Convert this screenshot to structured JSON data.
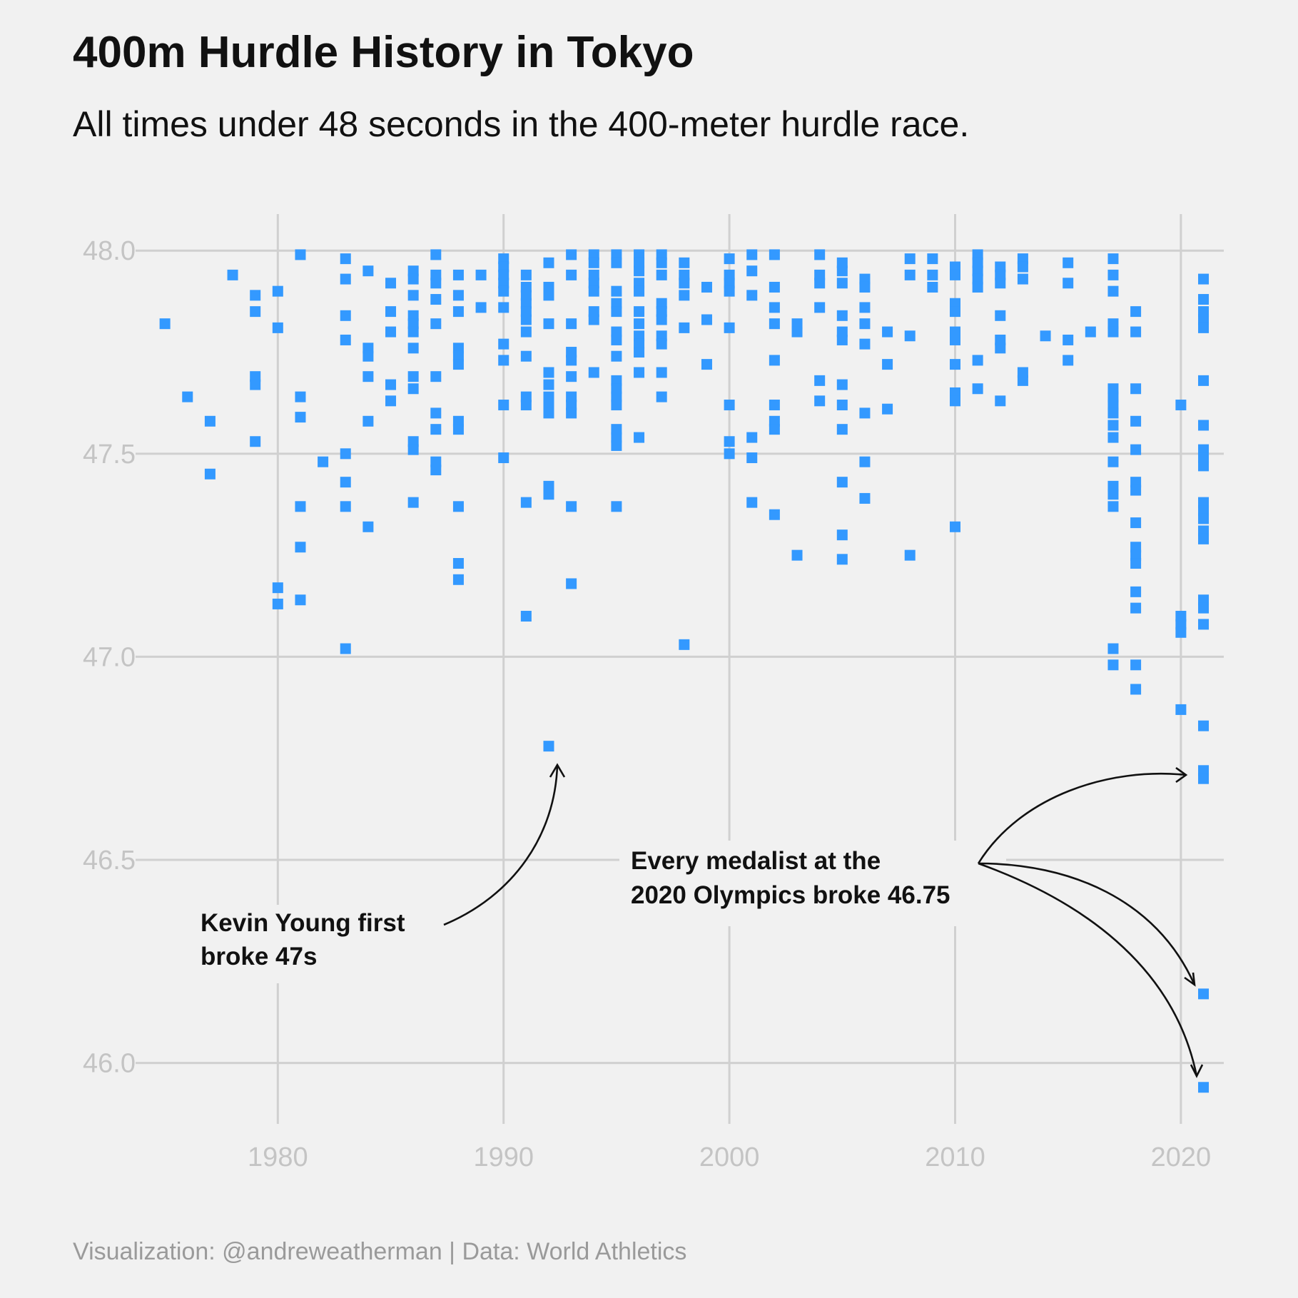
{
  "title": "400m Hurdle History in Tokyo",
  "subtitle": "All times under 48 seconds in the 400-meter hurdle race.",
  "caption": "Visualization: @andreweatherman | Data: World Athletics",
  "chart_data": {
    "type": "scatter",
    "x_ticks": [
      1980,
      1990,
      2000,
      2010,
      2020
    ],
    "y_ticks": [
      "46.0",
      "46.5",
      "47.0",
      "47.5",
      "48.0"
    ],
    "xlim": [
      1973.7,
      2021.9
    ],
    "ylim": [
      45.85,
      48.09
    ],
    "marker_color": "#3399ff",
    "grid": true,
    "points": [
      [
        1975,
        47.82
      ],
      [
        1976,
        47.64
      ],
      [
        1977,
        47.58
      ],
      [
        1977,
        47.45
      ],
      [
        1978,
        47.94
      ],
      [
        1979,
        47.89
      ],
      [
        1979,
        47.85
      ],
      [
        1979,
        47.69
      ],
      [
        1979,
        47.67
      ],
      [
        1979,
        47.53
      ],
      [
        1980,
        47.9
      ],
      [
        1980,
        47.81
      ],
      [
        1980,
        47.17
      ],
      [
        1980,
        47.13
      ],
      [
        1981,
        47.99
      ],
      [
        1981,
        47.64
      ],
      [
        1981,
        47.59
      ],
      [
        1981,
        47.37
      ],
      [
        1981,
        47.27
      ],
      [
        1981,
        47.14
      ],
      [
        1982,
        47.48
      ],
      [
        1983,
        47.98
      ],
      [
        1983,
        47.93
      ],
      [
        1983,
        47.84
      ],
      [
        1983,
        47.78
      ],
      [
        1983,
        47.5
      ],
      [
        1983,
        47.43
      ],
      [
        1983,
        47.37
      ],
      [
        1983,
        47.02
      ],
      [
        1984,
        47.95
      ],
      [
        1984,
        47.76
      ],
      [
        1984,
        47.74
      ],
      [
        1984,
        47.69
      ],
      [
        1984,
        47.58
      ],
      [
        1984,
        47.32
      ],
      [
        1985,
        47.92
      ],
      [
        1985,
        47.85
      ],
      [
        1985,
        47.8
      ],
      [
        1985,
        47.67
      ],
      [
        1985,
        47.63
      ],
      [
        1986,
        47.95
      ],
      [
        1986,
        47.93
      ],
      [
        1986,
        47.89
      ],
      [
        1986,
        47.84
      ],
      [
        1986,
        47.82
      ],
      [
        1986,
        47.8
      ],
      [
        1986,
        47.76
      ],
      [
        1986,
        47.69
      ],
      [
        1986,
        47.66
      ],
      [
        1986,
        47.53
      ],
      [
        1986,
        47.51
      ],
      [
        1986,
        47.38
      ],
      [
        1987,
        47.99
      ],
      [
        1987,
        47.94
      ],
      [
        1987,
        47.92
      ],
      [
        1987,
        47.88
      ],
      [
        1987,
        47.82
      ],
      [
        1987,
        47.69
      ],
      [
        1987,
        47.6
      ],
      [
        1987,
        47.56
      ],
      [
        1987,
        47.48
      ],
      [
        1987,
        47.46
      ],
      [
        1988,
        47.94
      ],
      [
        1988,
        47.89
      ],
      [
        1988,
        47.85
      ],
      [
        1988,
        47.76
      ],
      [
        1988,
        47.74
      ],
      [
        1988,
        47.72
      ],
      [
        1988,
        47.58
      ],
      [
        1988,
        47.56
      ],
      [
        1988,
        47.37
      ],
      [
        1988,
        47.23
      ],
      [
        1988,
        47.19
      ],
      [
        1989,
        47.94
      ],
      [
        1989,
        47.86
      ],
      [
        1990,
        47.98
      ],
      [
        1990,
        47.96
      ],
      [
        1990,
        47.94
      ],
      [
        1990,
        47.92
      ],
      [
        1990,
        47.9
      ],
      [
        1990,
        47.86
      ],
      [
        1990,
        47.77
      ],
      [
        1990,
        47.73
      ],
      [
        1990,
        47.62
      ],
      [
        1990,
        47.49
      ],
      [
        1991,
        47.94
      ],
      [
        1991,
        47.91
      ],
      [
        1991,
        47.89
      ],
      [
        1991,
        47.87
      ],
      [
        1991,
        47.85
      ],
      [
        1991,
        47.83
      ],
      [
        1991,
        47.8
      ],
      [
        1991,
        47.74
      ],
      [
        1991,
        47.64
      ],
      [
        1991,
        47.62
      ],
      [
        1991,
        47.38
      ],
      [
        1991,
        47.1
      ],
      [
        1992,
        47.97
      ],
      [
        1992,
        47.91
      ],
      [
        1992,
        47.89
      ],
      [
        1992,
        47.82
      ],
      [
        1992,
        47.7
      ],
      [
        1992,
        47.67
      ],
      [
        1992,
        47.64
      ],
      [
        1992,
        47.62
      ],
      [
        1992,
        47.6
      ],
      [
        1992,
        47.42
      ],
      [
        1992,
        47.4
      ],
      [
        1992,
        46.78
      ],
      [
        1993,
        47.99
      ],
      [
        1993,
        47.94
      ],
      [
        1993,
        47.82
      ],
      [
        1993,
        47.75
      ],
      [
        1993,
        47.73
      ],
      [
        1993,
        47.69
      ],
      [
        1993,
        47.64
      ],
      [
        1993,
        47.62
      ],
      [
        1993,
        47.6
      ],
      [
        1993,
        47.37
      ],
      [
        1993,
        47.18
      ],
      [
        1994,
        47.99
      ],
      [
        1994,
        47.97
      ],
      [
        1994,
        47.94
      ],
      [
        1994,
        47.92
      ],
      [
        1994,
        47.9
      ],
      [
        1994,
        47.85
      ],
      [
        1994,
        47.83
      ],
      [
        1994,
        47.7
      ],
      [
        1995,
        47.99
      ],
      [
        1995,
        47.97
      ],
      [
        1995,
        47.9
      ],
      [
        1995,
        47.87
      ],
      [
        1995,
        47.85
      ],
      [
        1995,
        47.8
      ],
      [
        1995,
        47.78
      ],
      [
        1995,
        47.74
      ],
      [
        1995,
        47.68
      ],
      [
        1995,
        47.66
      ],
      [
        1995,
        47.64
      ],
      [
        1995,
        47.62
      ],
      [
        1995,
        47.56
      ],
      [
        1995,
        47.54
      ],
      [
        1995,
        47.52
      ],
      [
        1995,
        47.37
      ],
      [
        1996,
        47.99
      ],
      [
        1996,
        47.97
      ],
      [
        1996,
        47.95
      ],
      [
        1996,
        47.92
      ],
      [
        1996,
        47.9
      ],
      [
        1996,
        47.85
      ],
      [
        1996,
        47.82
      ],
      [
        1996,
        47.79
      ],
      [
        1996,
        47.77
      ],
      [
        1996,
        47.75
      ],
      [
        1996,
        47.7
      ],
      [
        1996,
        47.54
      ],
      [
        1997,
        47.99
      ],
      [
        1997,
        47.97
      ],
      [
        1997,
        47.94
      ],
      [
        1997,
        47.87
      ],
      [
        1997,
        47.85
      ],
      [
        1997,
        47.83
      ],
      [
        1997,
        47.79
      ],
      [
        1997,
        47.77
      ],
      [
        1997,
        47.7
      ],
      [
        1997,
        47.64
      ],
      [
        1998,
        47.97
      ],
      [
        1998,
        47.94
      ],
      [
        1998,
        47.92
      ],
      [
        1998,
        47.89
      ],
      [
        1998,
        47.81
      ],
      [
        1998,
        47.03
      ],
      [
        1999,
        47.91
      ],
      [
        1999,
        47.83
      ],
      [
        1999,
        47.72
      ],
      [
        2000,
        47.98
      ],
      [
        2000,
        47.94
      ],
      [
        2000,
        47.92
      ],
      [
        2000,
        47.9
      ],
      [
        2000,
        47.81
      ],
      [
        2000,
        47.62
      ],
      [
        2000,
        47.53
      ],
      [
        2000,
        47.5
      ],
      [
        2001,
        47.99
      ],
      [
        2001,
        47.95
      ],
      [
        2001,
        47.89
      ],
      [
        2001,
        47.54
      ],
      [
        2001,
        47.49
      ],
      [
        2001,
        47.38
      ],
      [
        2002,
        47.99
      ],
      [
        2002,
        47.91
      ],
      [
        2002,
        47.86
      ],
      [
        2002,
        47.82
      ],
      [
        2002,
        47.73
      ],
      [
        2002,
        47.62
      ],
      [
        2002,
        47.58
      ],
      [
        2002,
        47.56
      ],
      [
        2002,
        47.35
      ],
      [
        2003,
        47.82
      ],
      [
        2003,
        47.8
      ],
      [
        2003,
        47.25
      ],
      [
        2004,
        47.99
      ],
      [
        2004,
        47.94
      ],
      [
        2004,
        47.92
      ],
      [
        2004,
        47.86
      ],
      [
        2004,
        47.68
      ],
      [
        2004,
        47.63
      ],
      [
        2005,
        47.97
      ],
      [
        2005,
        47.95
      ],
      [
        2005,
        47.92
      ],
      [
        2005,
        47.84
      ],
      [
        2005,
        47.8
      ],
      [
        2005,
        47.78
      ],
      [
        2005,
        47.67
      ],
      [
        2005,
        47.62
      ],
      [
        2005,
        47.56
      ],
      [
        2005,
        47.43
      ],
      [
        2005,
        47.3
      ],
      [
        2005,
        47.24
      ],
      [
        2006,
        47.93
      ],
      [
        2006,
        47.91
      ],
      [
        2006,
        47.86
      ],
      [
        2006,
        47.82
      ],
      [
        2006,
        47.77
      ],
      [
        2006,
        47.6
      ],
      [
        2006,
        47.48
      ],
      [
        2006,
        47.39
      ],
      [
        2007,
        47.8
      ],
      [
        2007,
        47.72
      ],
      [
        2007,
        47.61
      ],
      [
        2008,
        47.98
      ],
      [
        2008,
        47.94
      ],
      [
        2008,
        47.79
      ],
      [
        2008,
        47.25
      ],
      [
        2009,
        47.98
      ],
      [
        2009,
        47.94
      ],
      [
        2009,
        47.91
      ],
      [
        2010,
        47.96
      ],
      [
        2010,
        47.94
      ],
      [
        2010,
        47.87
      ],
      [
        2010,
        47.85
      ],
      [
        2010,
        47.8
      ],
      [
        2010,
        47.78
      ],
      [
        2010,
        47.72
      ],
      [
        2010,
        47.65
      ],
      [
        2010,
        47.63
      ],
      [
        2010,
        47.32
      ],
      [
        2011,
        47.99
      ],
      [
        2011,
        47.97
      ],
      [
        2011,
        47.95
      ],
      [
        2011,
        47.93
      ],
      [
        2011,
        47.91
      ],
      [
        2011,
        47.73
      ],
      [
        2011,
        47.66
      ],
      [
        2012,
        47.96
      ],
      [
        2012,
        47.94
      ],
      [
        2012,
        47.92
      ],
      [
        2012,
        47.84
      ],
      [
        2012,
        47.78
      ],
      [
        2012,
        47.76
      ],
      [
        2012,
        47.63
      ],
      [
        2013,
        47.98
      ],
      [
        2013,
        47.96
      ],
      [
        2013,
        47.93
      ],
      [
        2013,
        47.7
      ],
      [
        2013,
        47.68
      ],
      [
        2014,
        47.79
      ],
      [
        2015,
        47.97
      ],
      [
        2015,
        47.92
      ],
      [
        2015,
        47.78
      ],
      [
        2015,
        47.73
      ],
      [
        2016,
        47.8
      ],
      [
        2017,
        47.98
      ],
      [
        2017,
        47.94
      ],
      [
        2017,
        47.9
      ],
      [
        2017,
        47.82
      ],
      [
        2017,
        47.8
      ],
      [
        2017,
        47.66
      ],
      [
        2017,
        47.64
      ],
      [
        2017,
        47.62
      ],
      [
        2017,
        47.6
      ],
      [
        2017,
        47.57
      ],
      [
        2017,
        47.54
      ],
      [
        2017,
        47.48
      ],
      [
        2017,
        47.42
      ],
      [
        2017,
        47.4
      ],
      [
        2017,
        47.37
      ],
      [
        2017,
        47.02
      ],
      [
        2017,
        46.98
      ],
      [
        2018,
        47.85
      ],
      [
        2018,
        47.8
      ],
      [
        2018,
        47.66
      ],
      [
        2018,
        47.58
      ],
      [
        2018,
        47.51
      ],
      [
        2018,
        47.43
      ],
      [
        2018,
        47.41
      ],
      [
        2018,
        47.33
      ],
      [
        2018,
        47.27
      ],
      [
        2018,
        47.25
      ],
      [
        2018,
        47.23
      ],
      [
        2018,
        47.16
      ],
      [
        2018,
        47.12
      ],
      [
        2018,
        46.98
      ],
      [
        2018,
        46.92
      ],
      [
        2020,
        47.62
      ],
      [
        2020,
        47.1
      ],
      [
        2020,
        47.08
      ],
      [
        2020,
        47.06
      ],
      [
        2020,
        46.87
      ],
      [
        2021,
        47.93
      ],
      [
        2021,
        47.88
      ],
      [
        2021,
        47.85
      ],
      [
        2021,
        47.83
      ],
      [
        2021,
        47.81
      ],
      [
        2021,
        47.68
      ],
      [
        2021,
        47.57
      ],
      [
        2021,
        47.51
      ],
      [
        2021,
        47.49
      ],
      [
        2021,
        47.47
      ],
      [
        2021,
        47.38
      ],
      [
        2021,
        47.36
      ],
      [
        2021,
        47.34
      ],
      [
        2021,
        47.31
      ],
      [
        2021,
        47.29
      ],
      [
        2021,
        47.14
      ],
      [
        2021,
        47.12
      ],
      [
        2021,
        47.08
      ],
      [
        2021,
        46.83
      ],
      [
        2021,
        46.72
      ],
      [
        2021,
        46.7
      ],
      [
        2021,
        46.17
      ],
      [
        2021,
        45.94
      ]
    ],
    "annotations": [
      {
        "lines": [
          "Kevin Young first",
          "broke 47s"
        ]
      },
      {
        "lines": [
          "Every medalist at the",
          "2020 Olympics broke 46.75"
        ]
      }
    ]
  }
}
